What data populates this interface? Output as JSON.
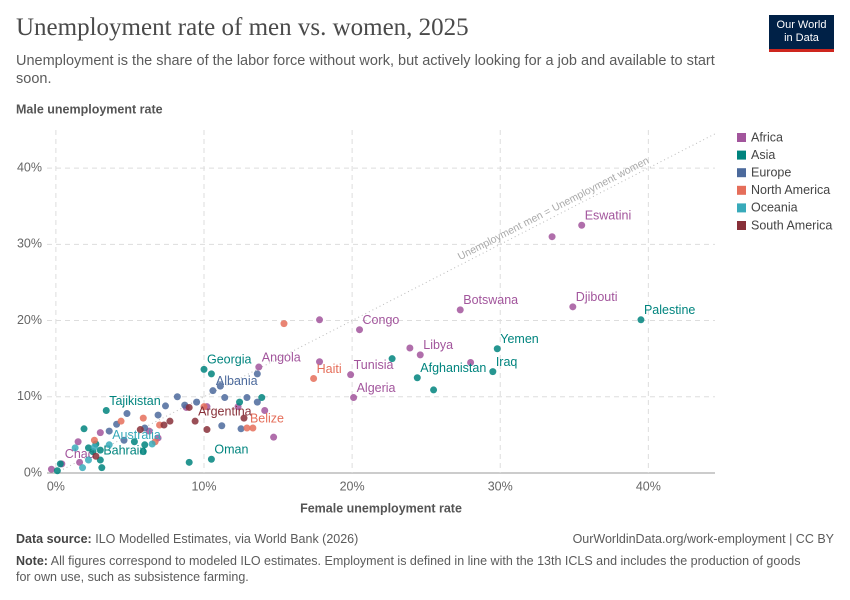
{
  "logo": [
    "Our World",
    "in Data"
  ],
  "chart_data": {
    "type": "scatter",
    "title": "Unemployment rate of men vs. women, 2025",
    "subtitle": "Unemployment is the share of the labor force without work, but actively looking for a job and available to start soon.",
    "x_label": "Female unemployment rate",
    "y_label": "Male unemployment rate",
    "xlim": [
      -0.6,
      44.5
    ],
    "ylim": [
      0,
      45
    ],
    "xticks": [
      {
        "value": 0,
        "label": "0%"
      },
      {
        "value": 10,
        "label": "10%"
      },
      {
        "value": 20,
        "label": "20%"
      },
      {
        "value": 30,
        "label": "30%"
      },
      {
        "value": 40,
        "label": "40%"
      }
    ],
    "yticks": [
      {
        "value": 0,
        "label": "0%"
      },
      {
        "value": 10,
        "label": "10%"
      },
      {
        "value": 20,
        "label": "20%"
      },
      {
        "value": 30,
        "label": "30%"
      },
      {
        "value": 40,
        "label": "40%"
      }
    ],
    "grid": true,
    "diagonal": true,
    "diagonal_label": "Unemployment men = Unemployment women",
    "legend": "right",
    "series": [
      {
        "name": "Africa",
        "color": "#a2559c",
        "x": [
          35.5,
          33.5,
          34.9,
          27.3,
          20.5,
          17.8,
          24.6,
          23.9,
          28.0,
          17.8,
          19.9,
          20.1,
          13.7,
          14.7,
          14.1,
          0.4,
          1.5,
          1.6,
          6.3,
          6.9,
          8.8,
          3.0,
          -0.3,
          10.2,
          12.3
        ],
        "values": [
          32.5,
          31.0,
          21.8,
          21.4,
          18.8,
          20.1,
          15.5,
          16.4,
          14.5,
          14.6,
          12.9,
          9.9,
          13.9,
          4.7,
          8.2,
          1.2,
          4.1,
          1.4,
          5.5,
          4.6,
          8.6,
          5.3,
          0.5,
          8.7,
          8.7
        ],
        "labels": [
          "Eswatini",
          null,
          "Djibouti",
          "Botswana",
          "Congo",
          null,
          "Libya",
          null,
          null,
          null,
          "Tunisia",
          "Algeria",
          "Angola",
          null,
          null,
          "Chad",
          null,
          null,
          null,
          null,
          null,
          null,
          null,
          null,
          null
        ]
      },
      {
        "name": "Asia",
        "color": "#00847e",
        "x": [
          39.5,
          29.8,
          29.5,
          24.4,
          22.7,
          25.5,
          10.0,
          10.5,
          13.9,
          3.4,
          10.5,
          9.0,
          0.1,
          0.3,
          1.9,
          2.5,
          3.0,
          3.1,
          5.9,
          6.0,
          5.3,
          2.7,
          2.2,
          12.4,
          3.0
        ],
        "values": [
          20.1,
          16.3,
          13.3,
          12.5,
          15.0,
          10.9,
          13.6,
          13.0,
          9.9,
          8.2,
          1.8,
          1.4,
          0.3,
          1.2,
          5.8,
          2.8,
          3.0,
          0.7,
          2.8,
          3.7,
          4.1,
          3.8,
          3.3,
          9.3,
          1.7
        ],
        "labels": [
          "Palestine",
          "Yemen",
          "Iraq",
          "Afghanistan",
          null,
          null,
          "Georgia",
          null,
          null,
          "Tajikistan",
          "Oman",
          null,
          null,
          null,
          null,
          null,
          null,
          null,
          null,
          null,
          null,
          null,
          null,
          null,
          "Bahrain"
        ]
      },
      {
        "name": "Europe",
        "color": "#4c6a9c",
        "x": [
          10.6,
          11.1,
          13.6,
          13.6,
          11.4,
          12.5,
          8.2,
          9.5,
          8.7,
          7.4,
          6.9,
          4.8,
          6.0,
          4.6,
          4.1,
          11.2,
          12.9,
          3.6
        ],
        "values": [
          10.8,
          11.4,
          13.0,
          9.3,
          9.9,
          5.8,
          10.0,
          9.3,
          8.9,
          8.8,
          7.6,
          7.8,
          5.9,
          4.3,
          6.4,
          6.2,
          9.9,
          5.5
        ],
        "labels": [
          "Albania",
          null,
          null,
          null,
          null,
          null,
          null,
          null,
          null,
          null,
          null,
          null,
          null,
          null,
          null,
          null,
          null,
          null
        ]
      },
      {
        "name": "North America",
        "color": "#e56e5a",
        "x": [
          17.4,
          15.4,
          12.9,
          13.3,
          10.0,
          4.4,
          5.9,
          6.7,
          7.0,
          2.6
        ],
        "values": [
          12.4,
          19.6,
          5.9,
          5.9,
          8.7,
          6.8,
          7.2,
          4.1,
          6.3,
          4.3
        ],
        "labels": [
          "Haiti",
          null,
          "Belize",
          null,
          null,
          null,
          null,
          null,
          null,
          null
        ]
      },
      {
        "name": "Oceania",
        "color": "#38aaba",
        "x": [
          3.6,
          2.2,
          2.6,
          1.3,
          6.5,
          1.8
        ],
        "values": [
          3.7,
          1.7,
          3.4,
          3.3,
          3.8,
          0.7
        ],
        "labels": [
          "Australia",
          null,
          null,
          null,
          null,
          null
        ]
      },
      {
        "name": "South America",
        "color": "#883039",
        "x": [
          9.4,
          10.2,
          9.0,
          7.3,
          7.7,
          5.7,
          2.7,
          12.7
        ],
        "values": [
          6.8,
          5.7,
          8.6,
          6.3,
          6.8,
          5.7,
          2.2,
          7.2
        ],
        "labels": [
          "Argentina",
          null,
          null,
          null,
          null,
          null,
          null,
          null
        ]
      }
    ],
    "source_label": "Data source:",
    "source": "ILO Modelled Estimates, via World Bank (2026)",
    "url": "OurWorldinData.org/work-employment | CC BY",
    "note_label": "Note:",
    "note": "All figures correspond to modeled ILO estimates. Employment is defined in line with the 13th ICLS and includes the production of goods for own use, such as subsistence farming."
  }
}
